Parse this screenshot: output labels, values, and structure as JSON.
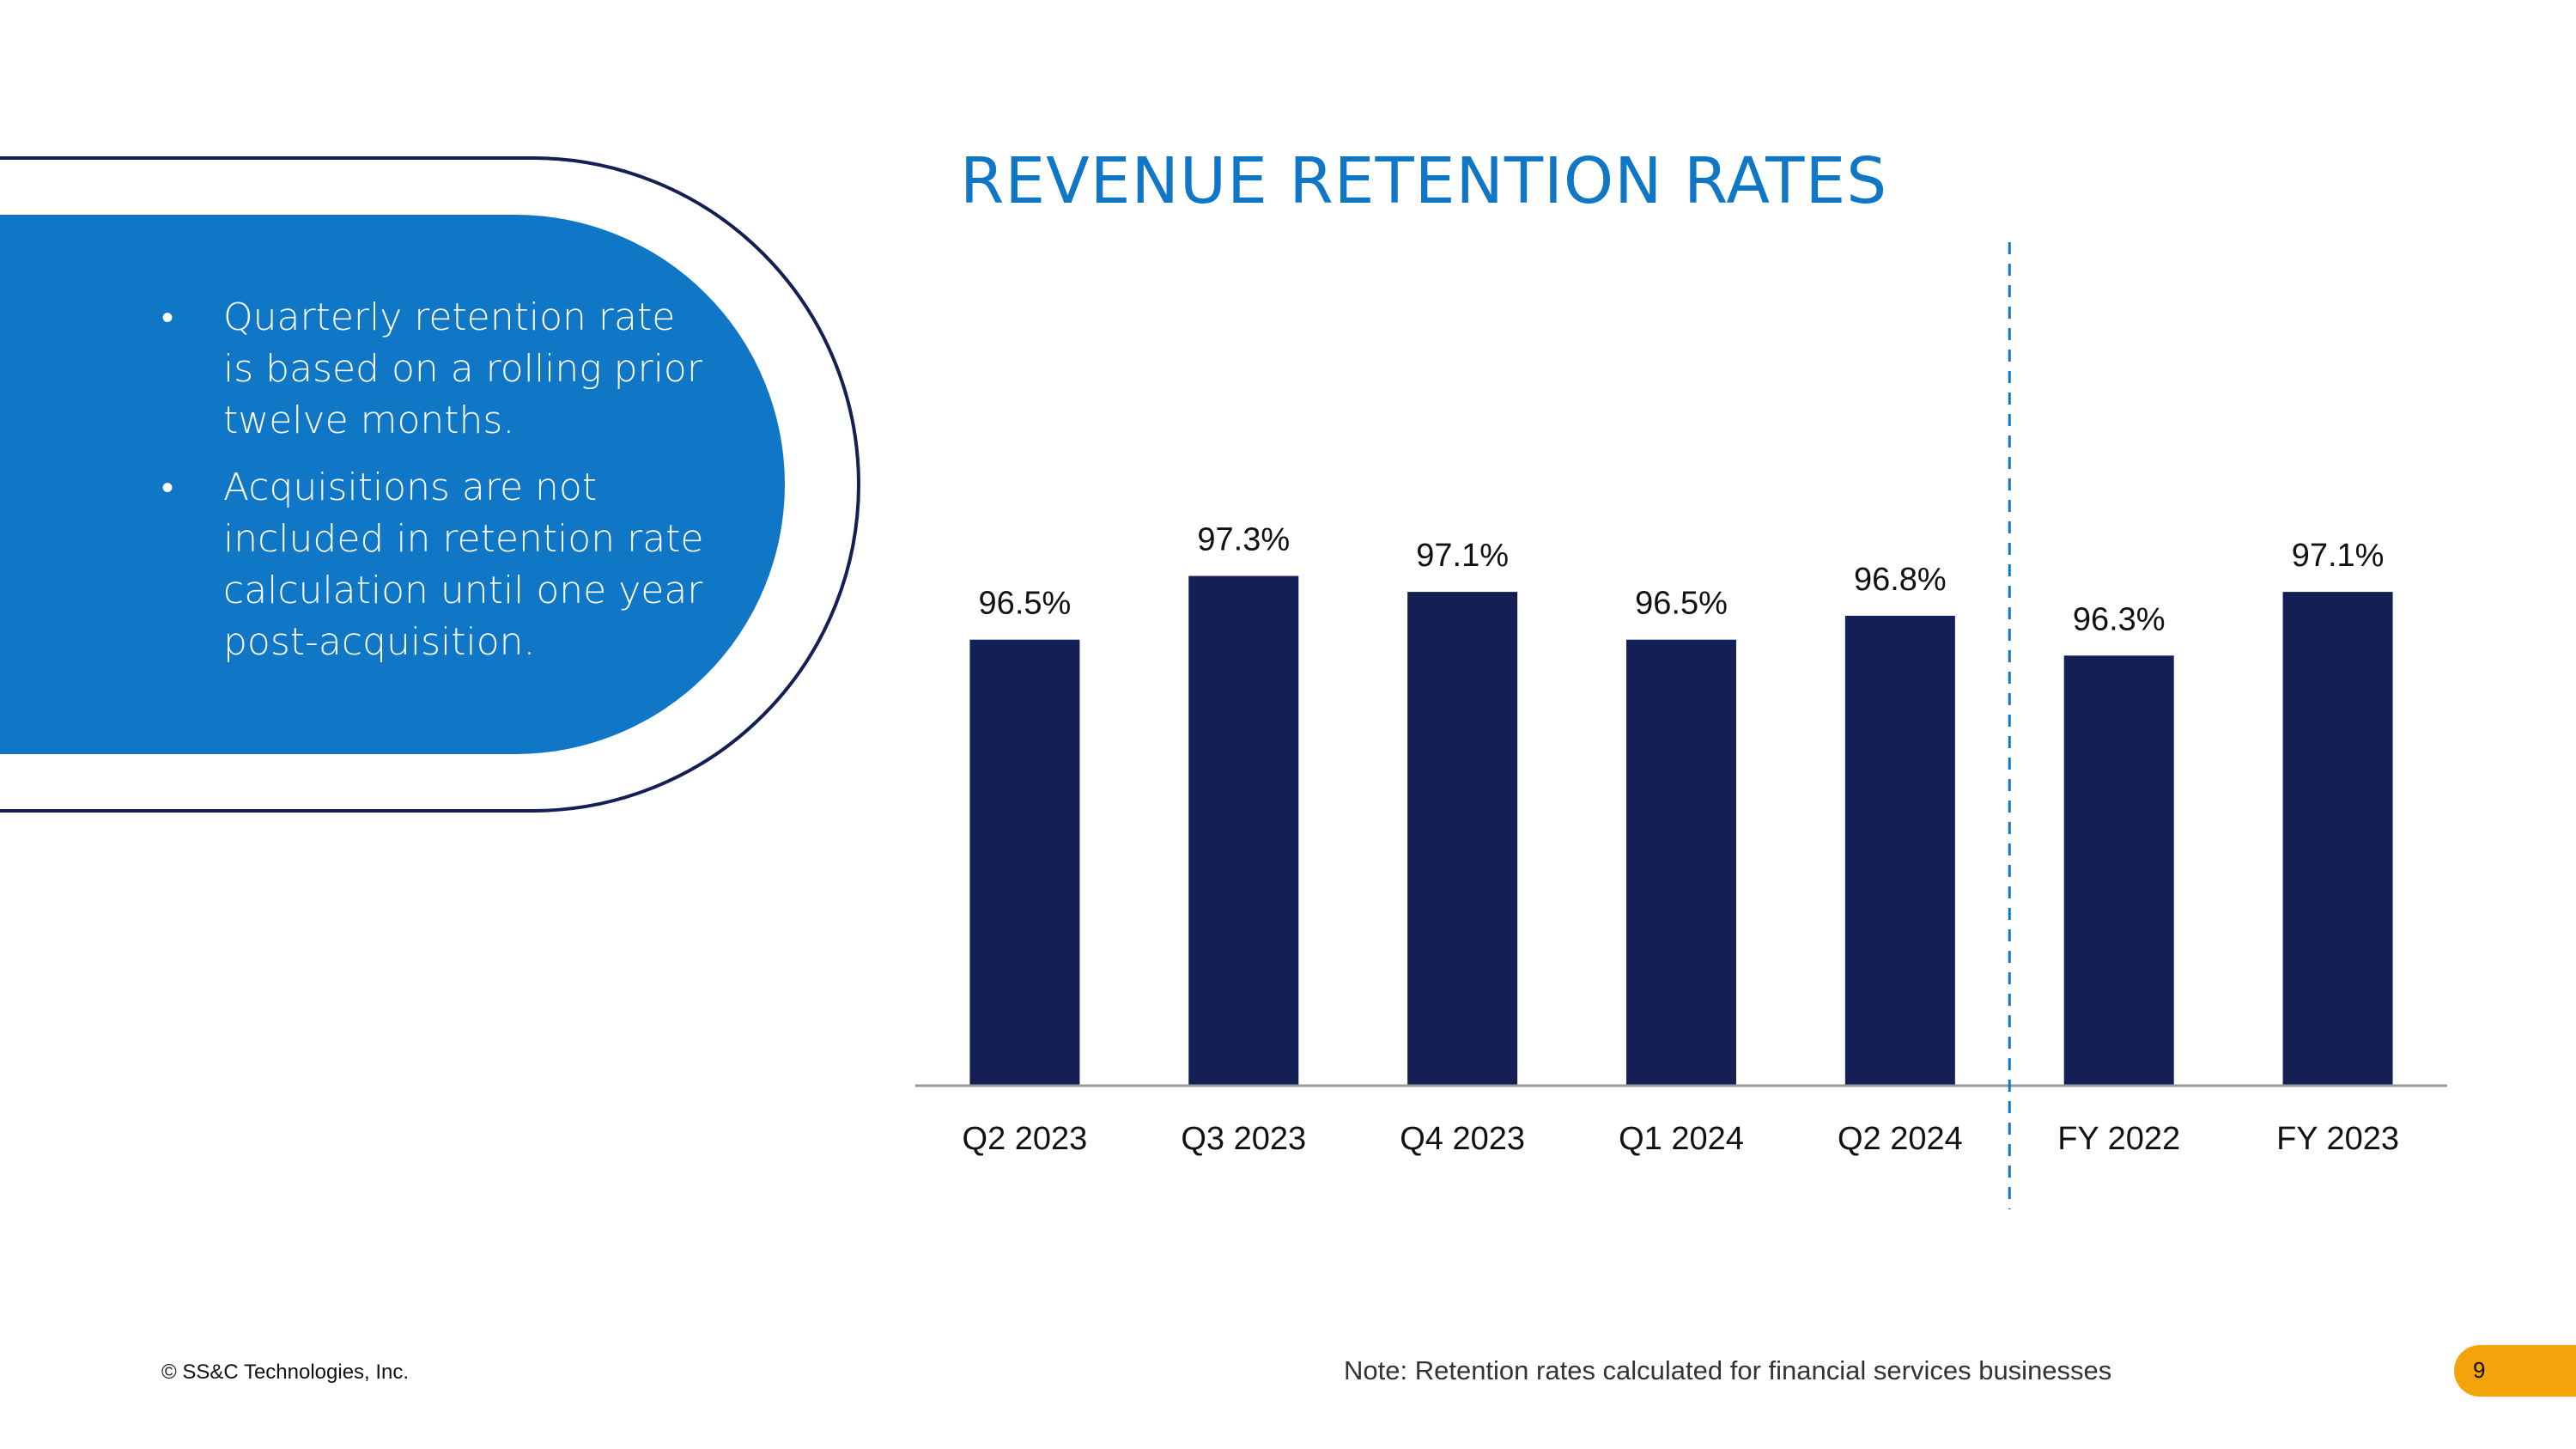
{
  "bullets": [
    "Quarterly retention rate is based on a rolling prior twelve months.",
    "Acquisitions are not included in retention rate calculation until one year post-acquisition."
  ],
  "bullet_symbol": "•",
  "chart_data": {
    "type": "bar",
    "title": "REVENUE RETENTION RATES",
    "categories": [
      "Q2 2023",
      "Q3 2023",
      "Q4 2023",
      "Q1 2024",
      "Q2 2024",
      "FY 2022",
      "FY 2023"
    ],
    "values": [
      96.5,
      97.3,
      97.1,
      96.5,
      96.8,
      96.3,
      97.1
    ],
    "data_labels": [
      "96.5%",
      "97.3%",
      "97.1%",
      "96.5%",
      "96.8%",
      "96.3%",
      "97.1%"
    ],
    "unit": "%",
    "xlabel": "",
    "ylabel": "",
    "ylim": [
      90.9,
      98.6
    ],
    "grid": false,
    "legend": "none",
    "separator_after_category": "Q2 2024",
    "bar_color": "#141f55",
    "separator_color": "#0f77c6"
  },
  "footer": {
    "copyright": "© SS&C Technologies, Inc.",
    "note": "Note: Retention rates calculated for financial services businesses",
    "page_number": "9"
  },
  "colors": {
    "brand_blue": "#0f77c6",
    "navy": "#141f55",
    "page_badge": "#f5a30a"
  }
}
